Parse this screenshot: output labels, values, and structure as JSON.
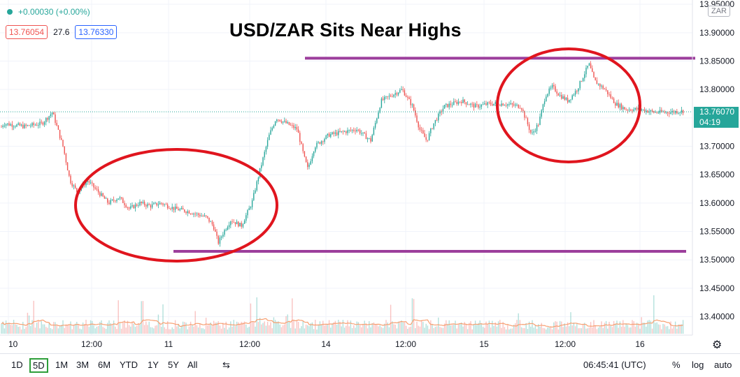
{
  "header": {
    "change": "+0.00030 (+0.00%)",
    "sell": "13.76054",
    "spread": "27.6",
    "buy": "13.76330",
    "title": "USD/ZAR Sits Near Highs",
    "currency_badge": "ZAR"
  },
  "price_tag": {
    "price": "13.76070",
    "countdown": "04:19"
  },
  "colors": {
    "up": "#26a69a",
    "down": "#ef5350",
    "annotation": "#e0151e",
    "level": "#9c3e9c"
  },
  "chart_data": {
    "type": "candlestick",
    "title": "USD/ZAR Sits Near Highs",
    "ylim": [
      13.37,
      13.96
    ],
    "y_ticks": [
      "13.95000",
      "13.90000",
      "13.85000",
      "13.80000",
      "13.75000",
      "13.70000",
      "13.65000",
      "13.60000",
      "13.55000",
      "13.50000",
      "13.45000",
      "13.40000"
    ],
    "x_ticks": [
      "10",
      "12:00",
      "11",
      "12:00",
      "14",
      "12:00",
      "15",
      "12:00",
      "16"
    ],
    "last_price": 13.7607,
    "resistance": 13.855,
    "support": 13.515,
    "approx_path": [
      [
        0,
        13.73
      ],
      [
        5,
        13.74
      ],
      [
        35,
        13.735
      ],
      [
        60,
        13.74
      ],
      [
        75,
        13.76
      ],
      [
        90,
        13.7
      ],
      [
        100,
        13.64
      ],
      [
        110,
        13.62
      ],
      [
        125,
        13.64
      ],
      [
        140,
        13.62
      ],
      [
        155,
        13.6
      ],
      [
        170,
        13.61
      ],
      [
        185,
        13.59
      ],
      [
        200,
        13.6
      ],
      [
        215,
        13.595
      ],
      [
        230,
        13.6
      ],
      [
        250,
        13.59
      ],
      [
        270,
        13.585
      ],
      [
        295,
        13.575
      ],
      [
        305,
        13.56
      ],
      [
        312,
        13.53
      ],
      [
        320,
        13.55
      ],
      [
        330,
        13.57
      ],
      [
        345,
        13.56
      ],
      [
        360,
        13.6
      ],
      [
        372,
        13.66
      ],
      [
        385,
        13.72
      ],
      [
        395,
        13.75
      ],
      [
        410,
        13.74
      ],
      [
        425,
        13.73
      ],
      [
        435,
        13.68
      ],
      [
        440,
        13.66
      ],
      [
        450,
        13.7
      ],
      [
        470,
        13.72
      ],
      [
        490,
        13.725
      ],
      [
        510,
        13.73
      ],
      [
        530,
        13.71
      ],
      [
        545,
        13.78
      ],
      [
        560,
        13.79
      ],
      [
        575,
        13.8
      ],
      [
        590,
        13.77
      ],
      [
        600,
        13.73
      ],
      [
        610,
        13.71
      ],
      [
        620,
        13.74
      ],
      [
        635,
        13.77
      ],
      [
        660,
        13.78
      ],
      [
        680,
        13.77
      ],
      [
        700,
        13.775
      ],
      [
        720,
        13.775
      ],
      [
        745,
        13.77
      ],
      [
        760,
        13.72
      ],
      [
        770,
        13.74
      ],
      [
        780,
        13.79
      ],
      [
        790,
        13.805
      ],
      [
        800,
        13.79
      ],
      [
        812,
        13.78
      ],
      [
        825,
        13.8
      ],
      [
        842,
        13.845
      ],
      [
        850,
        13.815
      ],
      [
        865,
        13.8
      ],
      [
        880,
        13.775
      ],
      [
        895,
        13.765
      ],
      [
        915,
        13.765
      ],
      [
        935,
        13.76
      ],
      [
        955,
        13.76
      ],
      [
        975,
        13.762
      ]
    ]
  },
  "toolbar": {
    "ranges": [
      "1D",
      "5D",
      "1M",
      "3M",
      "6M",
      "YTD",
      "1Y",
      "5Y",
      "All"
    ],
    "active": "5D",
    "time": "06:45:41 (UTC)",
    "percent": "%",
    "log": "log",
    "auto": "auto"
  }
}
